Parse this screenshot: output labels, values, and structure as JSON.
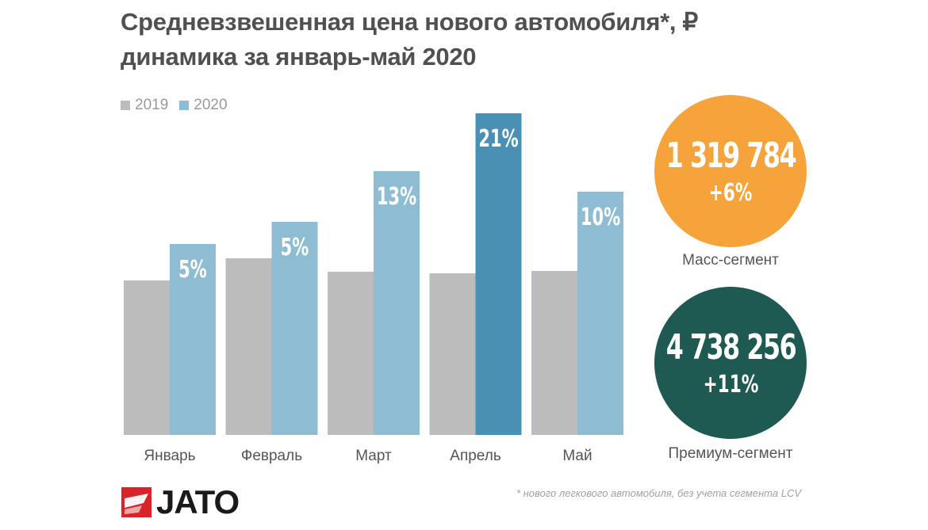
{
  "chart_data": {
    "type": "bar",
    "title": "Средневзвешенная цена нового автомобиля*, ₽",
    "subtitle": "динамика за январь-май 2020",
    "categories": [
      "Январь",
      "Февраль",
      "Март",
      "Апрель",
      "Май"
    ],
    "series": [
      {
        "name": "2019",
        "values": [
          195,
          223,
          206,
          204,
          207
        ],
        "color": "#bcbcbc"
      },
      {
        "name": "2020",
        "values": [
          241,
          269,
          333,
          406,
          307
        ],
        "color": "#8ebdd3",
        "data_labels": [
          "5%",
          "5%",
          "13%",
          "21%",
          "10%"
        ],
        "highlight_index": 3,
        "highlight_color": "#4a90b4"
      }
    ],
    "ylim": [
      0,
      420
    ],
    "grid": false,
    "legend": "top-left"
  },
  "segments": [
    {
      "value": "1 319 784",
      "change": "+6%",
      "label": "Масс-сегмент",
      "color": "#f5a33a"
    },
    {
      "value": "4 738 256",
      "change": "+11%",
      "label": "Премиум-сегмент",
      "color": "#1e5a52"
    }
  ],
  "footnote": "* нового легкового автомобиля, без учета сегмента LCV",
  "brand": {
    "name": "JATO",
    "color": "#d7242a"
  }
}
